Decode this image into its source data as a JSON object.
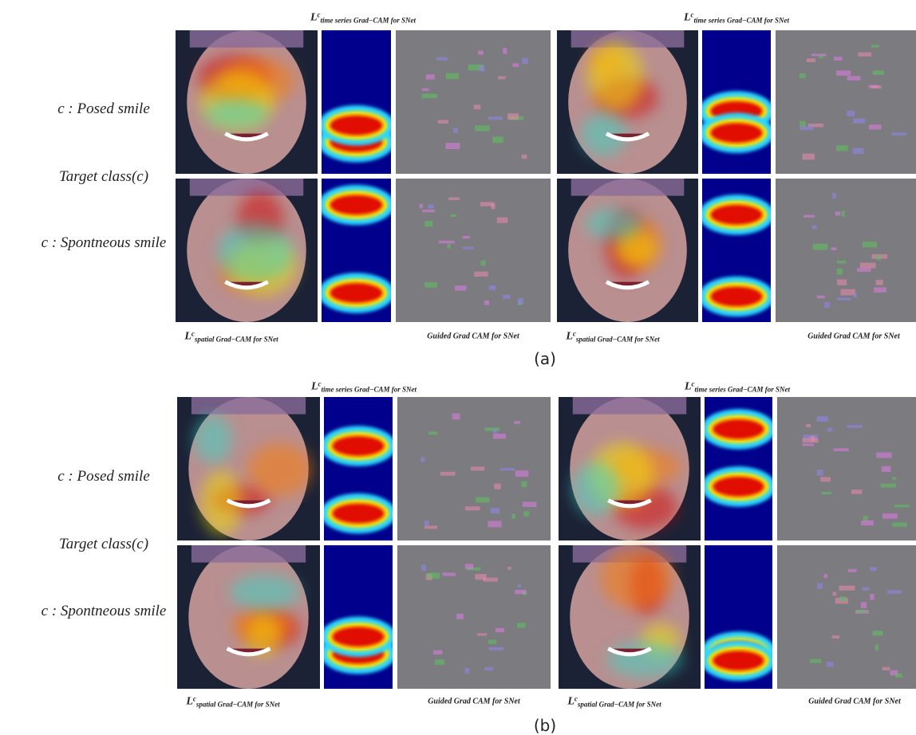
{
  "panels": [
    {
      "caption": "(a)",
      "row_labels": [
        "c : Posed smile",
        "Target class(c)",
        "c : Spontneous smile"
      ],
      "groups": [
        {
          "time_label": {
            "base": "L",
            "sup": "c",
            "sub": "time series Grad−CAM for SNet"
          },
          "spatial_label": {
            "base": "L",
            "sup": "c",
            "sub": "spatial Grad−CAM for SNet"
          },
          "guided_label": "Guided Grad CAM  for SNet"
        },
        {
          "time_label": {
            "base": "L",
            "sup": "c",
            "sub": "time series Grad−CAM for SNet"
          },
          "spatial_label": {
            "base": "L",
            "sup": "c",
            "sub": "spatial Grad−CAM for SNet"
          },
          "guided_label": "Guided Grad CAM  for SNet"
        }
      ]
    },
    {
      "caption": "(b)",
      "row_labels": [
        "c : Posed smile",
        "Target class(c)",
        "c : Spontneous smile"
      ],
      "groups": [
        {
          "time_label": {
            "base": "L",
            "sup": "c",
            "sub": "time series Grad−CAM for SNet"
          },
          "spatial_label": {
            "base": "L",
            "sup": "c",
            "sub": "spatial Grad−CAM for SNet"
          },
          "guided_label": "Guided Grad CAM  for SNet"
        },
        {
          "time_label": {
            "base": "L",
            "sup": "c",
            "sub": "time series Grad−CAM for SNet"
          },
          "spatial_label": {
            "base": "L",
            "sup": "c",
            "sub": "spatial Grad−CAM for SNet"
          },
          "guided_label": "Guided Grad CAM  for SNet"
        }
      ]
    }
  ]
}
